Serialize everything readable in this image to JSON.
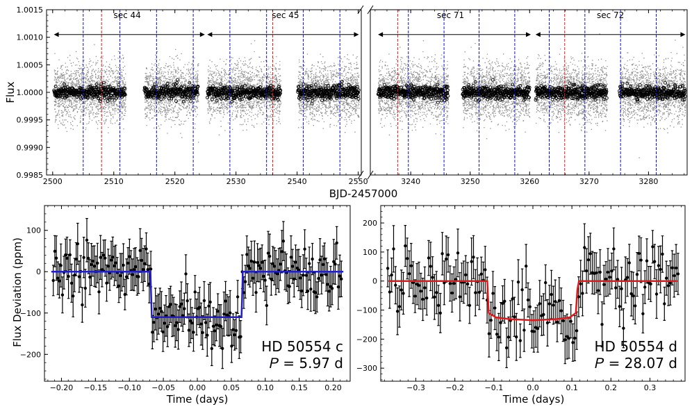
{
  "chart_data": [
    {
      "type": "scatter",
      "panel": "top-left",
      "ylabel": "Flux",
      "xlabel": "BJD-2457000",
      "xlim": [
        2499,
        2550.5
      ],
      "ylim": [
        0.9985,
        1.0015
      ],
      "xticks": [
        2500,
        2510,
        2520,
        2530,
        2540,
        2550
      ],
      "yticks": [
        0.9985,
        0.999,
        0.9995,
        1.0,
        1.0005,
        1.001,
        1.0015
      ],
      "ytick_labels": [
        "0.9985",
        "0.9990",
        "0.9995",
        "1.0000",
        "1.0005",
        "1.0010",
        "1.0015"
      ],
      "data_segments": [
        [
          2500.2,
          2511.9
        ],
        [
          2515.0,
          2523.8
        ],
        [
          2525.3,
          2537.3
        ],
        [
          2540.1,
          2550.1
        ]
      ],
      "raw_scatter_halfwidth": 0.00055,
      "binned_scatter_halfwidth": 0.00012,
      "blue_transits": [
        2505.0,
        2511.0,
        2517.0,
        2523.0,
        2529.0,
        2535.0,
        2541.0,
        2547.0
      ],
      "red_transits": [
        2508.0,
        2536.0
      ],
      "sectors": [
        {
          "label": "sec 44",
          "start": 2500.2,
          "end": 2524.9,
          "label_x": 2512.2
        },
        {
          "label": "sec 45",
          "start": 2525.3,
          "end": 2550.1,
          "label_x": 2538.1
        }
      ]
    },
    {
      "type": "scatter",
      "panel": "top-right",
      "xlim": [
        3233.2,
        3286.5
      ],
      "ylim": [
        0.9985,
        1.0015
      ],
      "xticks": [
        3240,
        3250,
        3260,
        3270,
        3280
      ],
      "data_segments": [
        [
          3234.5,
          3246.3
        ],
        [
          3248.7,
          3260.0
        ],
        [
          3261.0,
          3273.0
        ],
        [
          3275.1,
          3286.2
        ]
      ],
      "raw_scatter_halfwidth": 0.00055,
      "binned_scatter_halfwidth": 0.00012,
      "blue_transits": [
        3239.6,
        3245.6,
        3251.5,
        3257.5,
        3263.3,
        3269.3,
        3275.3,
        3281.3
      ],
      "red_transits": [
        3237.8,
        3265.9
      ],
      "sectors": [
        {
          "label": "sec 71",
          "start": 3234.5,
          "end": 3260.2,
          "label_x": 3246.7
        },
        {
          "label": "sec 72",
          "start": 3261.0,
          "end": 3286.2,
          "label_x": 3273.6
        }
      ]
    },
    {
      "type": "line",
      "panel": "bottom-left",
      "title": "HD 50554 c",
      "period_label": "𝑃 = 5.97 d",
      "xlabel": "Time (days)",
      "ylabel": "Flux Deviation (ppm)",
      "xlim": [
        -0.225,
        0.225
      ],
      "ylim": [
        -265,
        160
      ],
      "xticks": [
        -0.2,
        -0.15,
        -0.1,
        -0.05,
        0.0,
        0.05,
        0.1,
        0.15,
        0.2
      ],
      "xtick_labels": [
        "−0.20",
        "−0.15",
        "−0.10",
        "−0.05",
        "0.00",
        "0.05",
        "0.10",
        "0.15",
        "0.20"
      ],
      "yticks": [
        -200,
        -100,
        0,
        100
      ],
      "ytick_labels": [
        "−200",
        "−100",
        "0",
        "100"
      ],
      "model_color": "#1f1fd0",
      "model": {
        "x": [
          -0.215,
          -0.069,
          -0.067,
          0.0,
          0.065,
          0.067,
          0.215
        ],
        "y": [
          0,
          0,
          -110,
          -110,
          -110,
          0,
          0
        ]
      },
      "binned_points": {
        "x_start": -0.212,
        "x_end": 0.212,
        "n": 190,
        "transit_edges": [
          -0.068,
          0.066
        ],
        "depth": -110,
        "scatter_ppm": 45,
        "errorbar_ppm": 45
      }
    },
    {
      "type": "line",
      "panel": "bottom-right",
      "title": "HD 50554 d",
      "period_label": "𝑃 = 28.07 d",
      "xlabel": "Time (days)",
      "xlim": [
        -0.39,
        0.39
      ],
      "ylim": [
        -345,
        260
      ],
      "xticks": [
        -0.3,
        -0.2,
        -0.1,
        0.0,
        0.1,
        0.2,
        0.3
      ],
      "xtick_labels": [
        "−0.3",
        "−0.2",
        "−0.1",
        "0.0",
        "0.1",
        "0.2",
        "0.3"
      ],
      "yticks": [
        -300,
        -200,
        -100,
        0,
        100,
        200
      ],
      "ytick_labels": [
        "−300",
        "−200",
        "−100",
        "0",
        "100",
        "200"
      ],
      "model_color": "#e01818",
      "model": {
        "x": [
          -0.37,
          -0.117,
          -0.113,
          -0.095,
          -0.06,
          0.0,
          0.06,
          0.095,
          0.11,
          0.114,
          0.118,
          0.37
        ],
        "y": [
          0,
          0,
          -110,
          -125,
          -131,
          -135,
          -131,
          -125,
          -110,
          -30,
          0,
          0
        ]
      },
      "binned_points": {
        "x_start": -0.372,
        "x_end": 0.372,
        "n": 150,
        "transit_edges": [
          -0.115,
          0.115
        ],
        "depth": -130,
        "scatter_ppm": 70,
        "errorbar_ppm": 70
      }
    }
  ]
}
